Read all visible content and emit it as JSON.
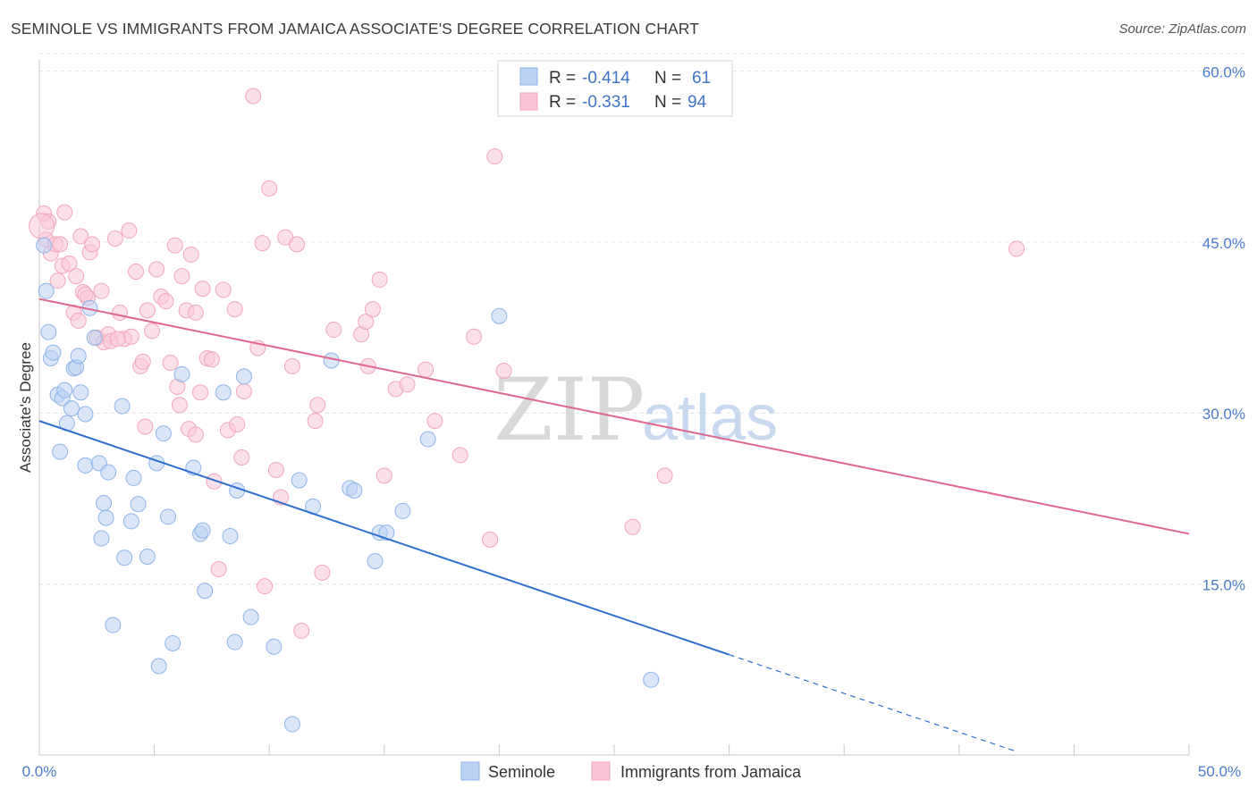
{
  "title": "SEMINOLE VS IMMIGRANTS FROM JAMAICA ASSOCIATE'S DEGREE CORRELATION CHART",
  "source": "Source: ZipAtlas.com",
  "watermark": {
    "zip": "ZIP",
    "atlas": "atlas"
  },
  "legend": {
    "r_label": "R =",
    "n_label": "N =",
    "rows": [
      {
        "r": "-0.414",
        "n": "61"
      },
      {
        "r": "-0.331",
        "n": "94"
      }
    ]
  },
  "chart_data": {
    "type": "scatter",
    "title": "SEMINOLE VS IMMIGRANTS FROM JAMAICA ASSOCIATE'S DEGREE CORRELATION CHART",
    "xlabel": "",
    "ylabel": "Associate's Degree",
    "xlim": [
      0,
      50
    ],
    "ylim": [
      0,
      60.0
    ],
    "x_tick_labels": [
      "0.0%",
      "50.0%"
    ],
    "y_ticks": [
      15,
      30,
      45,
      60
    ],
    "y_tick_labels": [
      "15.0%",
      "30.0%",
      "45.0%",
      "60.0%"
    ],
    "grid": true,
    "legend_position": "top-center",
    "colors": {
      "seminole": "#8fb4ea",
      "seminole_line": "#2f6fd0",
      "jamaica": "#f2a6bf",
      "jamaica_line": "#e0678f"
    },
    "series": [
      {
        "name": "Seminole",
        "r": -0.414,
        "n": 61,
        "trend": {
          "x0": 0,
          "y0": 29.3,
          "x1": 30,
          "y1": 8.8,
          "dash_to_x": 42.5,
          "dash_to_y": 0.3
        },
        "points": [
          [
            0.2,
            44.7
          ],
          [
            0.3,
            40.7
          ],
          [
            0.4,
            37.1
          ],
          [
            0.5,
            34.8
          ],
          [
            0.6,
            35.3
          ],
          [
            0.8,
            31.6
          ],
          [
            0.9,
            26.6
          ],
          [
            1.0,
            31.3
          ],
          [
            1.1,
            32.0
          ],
          [
            1.2,
            29.1
          ],
          [
            1.4,
            30.4
          ],
          [
            1.5,
            33.9
          ],
          [
            1.6,
            34.0
          ],
          [
            1.7,
            35.0
          ],
          [
            1.8,
            31.8
          ],
          [
            2.0,
            29.9
          ],
          [
            2.0,
            25.4
          ],
          [
            2.2,
            39.2
          ],
          [
            2.4,
            36.6
          ],
          [
            2.6,
            25.6
          ],
          [
            2.7,
            19.0
          ],
          [
            2.8,
            22.1
          ],
          [
            2.9,
            20.8
          ],
          [
            3.0,
            24.8
          ],
          [
            3.2,
            11.4
          ],
          [
            3.6,
            30.6
          ],
          [
            3.7,
            17.3
          ],
          [
            4.0,
            20.5
          ],
          [
            4.1,
            24.3
          ],
          [
            4.3,
            22.0
          ],
          [
            4.7,
            17.4
          ],
          [
            5.1,
            25.6
          ],
          [
            5.2,
            7.8
          ],
          [
            5.4,
            28.2
          ],
          [
            5.6,
            20.9
          ],
          [
            5.8,
            9.8
          ],
          [
            6.2,
            33.4
          ],
          [
            6.7,
            25.2
          ],
          [
            7.0,
            19.4
          ],
          [
            7.1,
            19.7
          ],
          [
            7.2,
            14.4
          ],
          [
            8.0,
            31.8
          ],
          [
            8.3,
            19.2
          ],
          [
            8.5,
            9.9
          ],
          [
            8.6,
            23.2
          ],
          [
            8.9,
            33.2
          ],
          [
            9.2,
            12.1
          ],
          [
            10.2,
            9.5
          ],
          [
            11.0,
            2.7
          ],
          [
            11.3,
            24.1
          ],
          [
            11.9,
            21.8
          ],
          [
            12.7,
            34.6
          ],
          [
            13.5,
            23.4
          ],
          [
            13.7,
            23.2
          ],
          [
            14.6,
            17.0
          ],
          [
            14.8,
            19.5
          ],
          [
            15.1,
            19.5
          ],
          [
            15.8,
            21.4
          ],
          [
            16.9,
            27.7
          ],
          [
            20.0,
            38.5
          ],
          [
            26.6,
            6.6
          ]
        ]
      },
      {
        "name": "Immigrants from Jamaica",
        "r": -0.331,
        "n": 94,
        "trend": {
          "x0": 0,
          "y0": 40.0,
          "x1": 50,
          "y1": 19.4
        },
        "points": [
          [
            0.2,
            47.5
          ],
          [
            0.3,
            45.2
          ],
          [
            0.4,
            46.8
          ],
          [
            0.5,
            44.0
          ],
          [
            0.7,
            44.8
          ],
          [
            0.8,
            41.6
          ],
          [
            0.9,
            44.8
          ],
          [
            1.0,
            42.9
          ],
          [
            1.1,
            47.6
          ],
          [
            1.3,
            43.1
          ],
          [
            1.5,
            38.8
          ],
          [
            1.6,
            42.0
          ],
          [
            1.7,
            38.1
          ],
          [
            1.8,
            45.5
          ],
          [
            1.9,
            40.6
          ],
          [
            2.1,
            40.1
          ],
          [
            2.2,
            44.1
          ],
          [
            2.3,
            44.8
          ],
          [
            2.5,
            36.6
          ],
          [
            2.7,
            40.7
          ],
          [
            2.8,
            36.2
          ],
          [
            3.0,
            36.9
          ],
          [
            3.1,
            36.3
          ],
          [
            3.3,
            45.3
          ],
          [
            3.5,
            38.8
          ],
          [
            3.7,
            36.5
          ],
          [
            3.9,
            46.0
          ],
          [
            4.0,
            36.7
          ],
          [
            4.2,
            42.4
          ],
          [
            4.4,
            34.1
          ],
          [
            4.5,
            34.5
          ],
          [
            4.7,
            39.0
          ],
          [
            4.9,
            37.2
          ],
          [
            5.1,
            42.6
          ],
          [
            5.3,
            40.2
          ],
          [
            5.5,
            39.8
          ],
          [
            5.7,
            34.4
          ],
          [
            5.9,
            44.7
          ],
          [
            6.0,
            32.3
          ],
          [
            6.1,
            30.7
          ],
          [
            6.2,
            42.0
          ],
          [
            6.4,
            39.0
          ],
          [
            6.5,
            28.6
          ],
          [
            6.6,
            43.9
          ],
          [
            6.8,
            38.8
          ],
          [
            7.0,
            31.8
          ],
          [
            7.1,
            40.9
          ],
          [
            7.3,
            34.8
          ],
          [
            7.5,
            34.7
          ],
          [
            7.6,
            24.0
          ],
          [
            7.8,
            16.3
          ],
          [
            8.0,
            40.8
          ],
          [
            8.2,
            28.5
          ],
          [
            8.5,
            39.1
          ],
          [
            8.6,
            29.0
          ],
          [
            8.8,
            26.1
          ],
          [
            8.9,
            31.9
          ],
          [
            9.3,
            57.8
          ],
          [
            9.5,
            35.7
          ],
          [
            9.7,
            44.9
          ],
          [
            9.8,
            14.8
          ],
          [
            10.0,
            49.7
          ],
          [
            10.3,
            25.0
          ],
          [
            10.5,
            22.6
          ],
          [
            10.7,
            45.4
          ],
          [
            11.0,
            34.1
          ],
          [
            11.2,
            44.8
          ],
          [
            11.4,
            10.9
          ],
          [
            12.1,
            30.7
          ],
          [
            12.3,
            16.0
          ],
          [
            12.8,
            37.3
          ],
          [
            14.0,
            36.9
          ],
          [
            14.2,
            38.0
          ],
          [
            14.3,
            34.1
          ],
          [
            14.5,
            39.1
          ],
          [
            14.8,
            41.7
          ],
          [
            15.0,
            24.5
          ],
          [
            15.5,
            32.1
          ],
          [
            16.0,
            32.5
          ],
          [
            16.8,
            33.8
          ],
          [
            17.2,
            29.3
          ],
          [
            18.3,
            26.3
          ],
          [
            18.9,
            36.7
          ],
          [
            19.6,
            18.9
          ],
          [
            19.8,
            52.5
          ],
          [
            20.2,
            33.7
          ],
          [
            25.8,
            20.0
          ],
          [
            27.2,
            24.5
          ],
          [
            42.5,
            44.4
          ],
          [
            3.4,
            36.5
          ],
          [
            4.6,
            28.8
          ],
          [
            2.0,
            40.4
          ],
          [
            6.8,
            28.1
          ],
          [
            12.0,
            29.3
          ]
        ]
      }
    ]
  },
  "bottom_legend": [
    "Seminole",
    "Immigrants from Jamaica"
  ]
}
